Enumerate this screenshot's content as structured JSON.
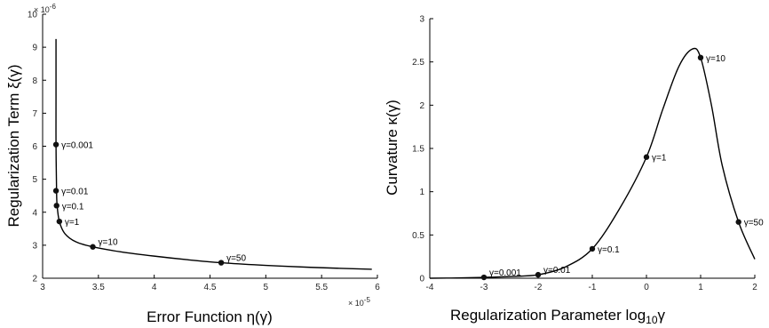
{
  "chart_data": [
    {
      "type": "line",
      "xlabel": "Error Function η(γ)",
      "ylabel": "Regularization Term ξ(γ)",
      "x_multiplier": "× 10",
      "x_exponent": "-5",
      "y_multiplier": "× 10",
      "y_exponent": "-6",
      "xlim": [
        3,
        6
      ],
      "ylim": [
        2,
        10
      ],
      "xticks": [
        "3",
        "3.5",
        "4",
        "4.5",
        "5",
        "5.5",
        "6"
      ],
      "yticks": [
        "2",
        "3",
        "4",
        "5",
        "6",
        "7",
        "8",
        "9",
        "10"
      ],
      "curve": {
        "x": [
          3.12,
          3.12,
          3.12,
          3.125,
          3.13,
          3.15,
          3.2,
          3.3,
          3.45,
          3.7,
          4.0,
          4.3,
          4.6,
          5.0,
          5.4,
          5.95
        ],
        "y": [
          9.25,
          7.5,
          6.05,
          4.65,
          4.2,
          3.72,
          3.35,
          3.1,
          2.95,
          2.8,
          2.67,
          2.56,
          2.47,
          2.39,
          2.33,
          2.27
        ]
      },
      "points": [
        {
          "label": "γ=0.001",
          "x": 3.12,
          "y": 6.05
        },
        {
          "label": "γ=0.01",
          "x": 3.12,
          "y": 4.65
        },
        {
          "label": "γ=0.1",
          "x": 3.125,
          "y": 4.2
        },
        {
          "label": "γ=1",
          "x": 3.15,
          "y": 3.72
        },
        {
          "label": "γ=10",
          "x": 3.45,
          "y": 2.95
        },
        {
          "label": "γ=50",
          "x": 4.6,
          "y": 2.47
        }
      ]
    },
    {
      "type": "line",
      "xlabel_main": "Regularization Parameter log",
      "xlabel_sub": "10",
      "xlabel_tail": "γ",
      "ylabel": "Curvature κ(γ)",
      "xlim": [
        -4,
        2
      ],
      "ylim": [
        0,
        3
      ],
      "xticks": [
        "-4",
        "-3",
        "-2",
        "-1",
        "0",
        "1",
        "2"
      ],
      "yticks": [
        "0",
        "0.5",
        "1",
        "1.5",
        "2",
        "2.5",
        "3"
      ],
      "curve": {
        "x": [
          -4,
          -3.5,
          -3,
          -2.5,
          -2,
          -1.5,
          -1,
          -0.5,
          0,
          0.3,
          0.6,
          0.85,
          1,
          1.2,
          1.4,
          1.7,
          2
        ],
        "y": [
          0,
          0.003,
          0.01,
          0.02,
          0.04,
          0.13,
          0.34,
          0.8,
          1.4,
          1.95,
          2.45,
          2.65,
          2.55,
          2.0,
          1.3,
          0.65,
          0.22
        ]
      },
      "points": [
        {
          "label": "γ=0.001",
          "x": -3,
          "y": 0.01
        },
        {
          "label": "γ=0.01",
          "x": -2,
          "y": 0.04
        },
        {
          "label": "γ=0.1",
          "x": -1,
          "y": 0.34
        },
        {
          "label": "γ=1",
          "x": 0,
          "y": 1.4
        },
        {
          "label": "γ=10",
          "x": 1,
          "y": 2.55
        },
        {
          "label": "γ=50",
          "x": 1.7,
          "y": 0.65
        }
      ]
    }
  ]
}
